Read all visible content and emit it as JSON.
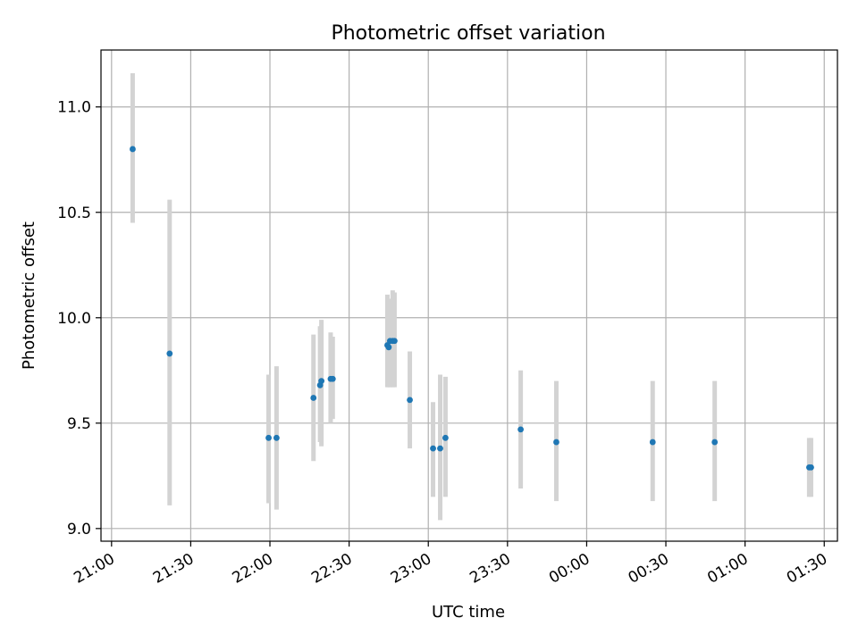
{
  "chart_data": {
    "type": "scatter",
    "title": "Photometric offset variation",
    "xlabel": "UTC time",
    "ylabel": "Photometric offset",
    "x_unit": "minutes after 21:00",
    "xlim": [
      -4,
      275
    ],
    "ylim": [
      8.94,
      11.27
    ],
    "grid": true,
    "colors": {
      "point": "#1f77b4",
      "errorbar": "#d3d3d3",
      "grid": "#b0b0b0"
    },
    "x_ticks": [
      {
        "value": 0,
        "label": "21:00"
      },
      {
        "value": 30,
        "label": "21:30"
      },
      {
        "value": 60,
        "label": "22:00"
      },
      {
        "value": 90,
        "label": "22:30"
      },
      {
        "value": 120,
        "label": "23:00"
      },
      {
        "value": 150,
        "label": "23:30"
      },
      {
        "value": 180,
        "label": "00:00"
      },
      {
        "value": 210,
        "label": "00:30"
      },
      {
        "value": 240,
        "label": "01:00"
      },
      {
        "value": 270,
        "label": "01:30"
      }
    ],
    "y_ticks": [
      {
        "value": 9.0,
        "label": "9.0"
      },
      {
        "value": 9.5,
        "label": "9.5"
      },
      {
        "value": 10.0,
        "label": "10.0"
      },
      {
        "value": 10.5,
        "label": "10.5"
      },
      {
        "value": 11.0,
        "label": "11.0"
      }
    ],
    "points": [
      {
        "x": 8.0,
        "y": 10.8,
        "err_low": 10.45,
        "err_high": 11.16
      },
      {
        "x": 22.0,
        "y": 9.83,
        "err_low": 9.11,
        "err_high": 10.56
      },
      {
        "x": 59.5,
        "y": 9.43,
        "err_low": 9.12,
        "err_high": 9.73
      },
      {
        "x": 62.5,
        "y": 9.43,
        "err_low": 9.09,
        "err_high": 9.77
      },
      {
        "x": 76.5,
        "y": 9.62,
        "err_low": 9.32,
        "err_high": 9.92
      },
      {
        "x": 79.0,
        "y": 9.68,
        "err_low": 9.41,
        "err_high": 9.96
      },
      {
        "x": 79.5,
        "y": 9.7,
        "err_low": 9.39,
        "err_high": 9.99
      },
      {
        "x": 83.0,
        "y": 9.71,
        "err_low": 9.5,
        "err_high": 9.93
      },
      {
        "x": 83.8,
        "y": 9.71,
        "err_low": 9.52,
        "err_high": 9.91
      },
      {
        "x": 104.5,
        "y": 9.87,
        "err_low": 9.67,
        "err_high": 10.11
      },
      {
        "x": 105.0,
        "y": 9.86,
        "err_low": 9.67,
        "err_high": 10.03
      },
      {
        "x": 105.5,
        "y": 9.89,
        "err_low": 9.67,
        "err_high": 10.09
      },
      {
        "x": 106.5,
        "y": 9.89,
        "err_low": 9.67,
        "err_high": 10.13
      },
      {
        "x": 107.2,
        "y": 9.89,
        "err_low": 9.67,
        "err_high": 10.12
      },
      {
        "x": 113.0,
        "y": 9.61,
        "err_low": 9.38,
        "err_high": 9.84
      },
      {
        "x": 121.8,
        "y": 9.38,
        "err_low": 9.15,
        "err_high": 9.6
      },
      {
        "x": 124.5,
        "y": 9.38,
        "err_low": 9.04,
        "err_high": 9.73
      },
      {
        "x": 126.5,
        "y": 9.43,
        "err_low": 9.15,
        "err_high": 9.72
      },
      {
        "x": 155.0,
        "y": 9.47,
        "err_low": 9.19,
        "err_high": 9.75
      },
      {
        "x": 168.5,
        "y": 9.41,
        "err_low": 9.13,
        "err_high": 9.7
      },
      {
        "x": 205.0,
        "y": 9.41,
        "err_low": 9.13,
        "err_high": 9.7
      },
      {
        "x": 228.5,
        "y": 9.41,
        "err_low": 9.13,
        "err_high": 9.7
      },
      {
        "x": 264.3,
        "y": 9.29,
        "err_low": 9.15,
        "err_high": 9.43
      },
      {
        "x": 265.0,
        "y": 9.29,
        "err_low": 9.15,
        "err_high": 9.43
      }
    ]
  }
}
